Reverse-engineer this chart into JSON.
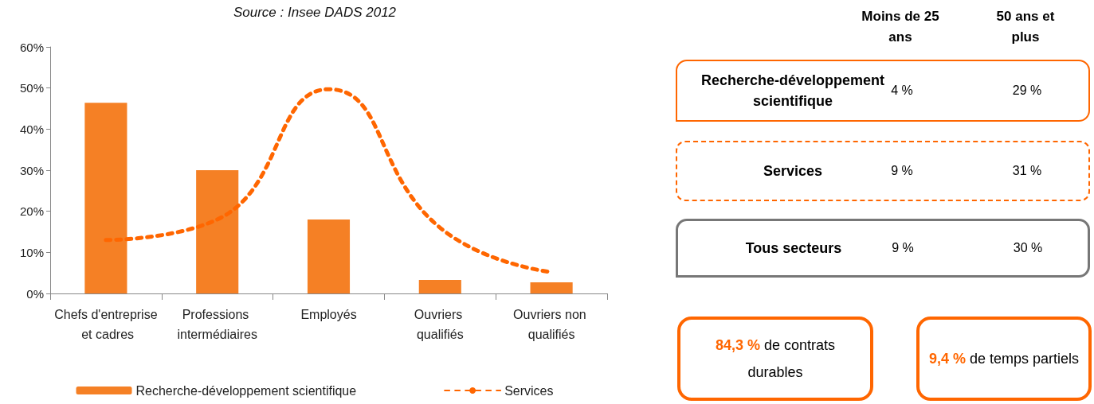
{
  "chart_data": [
    {
      "type": "bar",
      "subtitle": "Source : Insee DADS 2012",
      "categories": [
        "Chefs d'entreprise et cadres",
        "Professions intermédiaires",
        "Employés",
        "Ouvriers qualifiés",
        "Ouvriers non qualifiés"
      ],
      "series": [
        {
          "name": "Recherche-développement scientifique",
          "color": "#f58025",
          "values": [
            46.4,
            30,
            18,
            3.3,
            2.7
          ]
        },
        {
          "name": "Services",
          "type": "line",
          "color": "#ff6600",
          "line_style": "dashed",
          "marker": "none",
          "values": [
            13,
            18,
            49.7,
            16,
            5.2
          ]
        }
      ],
      "ylim": [
        0,
        60
      ],
      "yticks": [
        {
          "value": 0,
          "label": "0%"
        },
        {
          "value": 10,
          "label": "10%"
        },
        {
          "value": 20,
          "label": "20%"
        },
        {
          "value": 30,
          "label": "30%"
        },
        {
          "value": 40,
          "label": "40%"
        },
        {
          "value": 50,
          "label": "50%"
        },
        {
          "value": 60,
          "label": "60%"
        }
      ],
      "grid": false,
      "legend": "bottom"
    },
    {
      "type": "other",
      "annotations": [
        "Moins de 25 ans",
        "50 ans et plus",
        "Recherche-développement scientifique",
        "4 %",
        "29 %",
        "Services",
        "9 %",
        "31 %",
        "Tous secteurs",
        "9 %",
        "30 %",
        "84,3 % de contrats durables",
        "9,4 % de temps partiels"
      ]
    }
  ]
}
